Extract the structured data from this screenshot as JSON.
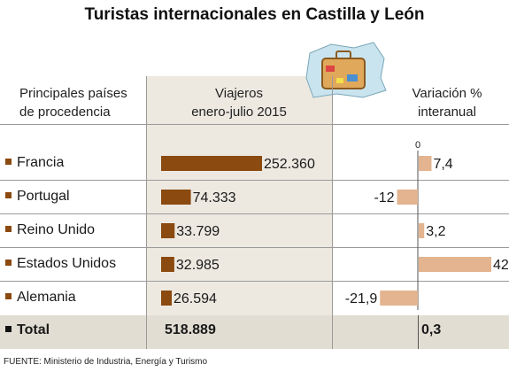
{
  "title": "Turistas internacionales en Castilla y León",
  "headers": {
    "countries_line1": "Principales países",
    "countries_line2": "de procedencia",
    "visitors_line1": "Viajeros",
    "visitors_line2": "enero-julio 2015",
    "variation_line1": "Variación %",
    "variation_line2": "interanual"
  },
  "zero_label": "0",
  "total": {
    "label": "Total",
    "visitors": "518.889",
    "variation": "0,3"
  },
  "source": "FUENTE: Ministerio de Industria, Energía y Turismo",
  "colors": {
    "bar": "#8b4a10",
    "variation_bar": "#e3b48f",
    "column_bg": "#ede9e1",
    "total_bg": "#e2ddd2"
  },
  "chart_data": {
    "type": "bar",
    "categories": [
      "Francia",
      "Portugal",
      "Reino Unido",
      "Estados Unidos",
      "Alemania"
    ],
    "series": [
      {
        "values": [
          252360,
          74333,
          33799,
          32985,
          26594
        ],
        "labels": [
          "252.360",
          "74.333",
          "33.799",
          "32.985",
          "26.594"
        ]
      },
      {
        "values": [
          7.4,
          -12,
          3.2,
          42,
          -21.9
        ],
        "labels": [
          "7,4",
          "-12",
          "3,2",
          "42",
          "-21,9"
        ]
      }
    ]
  }
}
